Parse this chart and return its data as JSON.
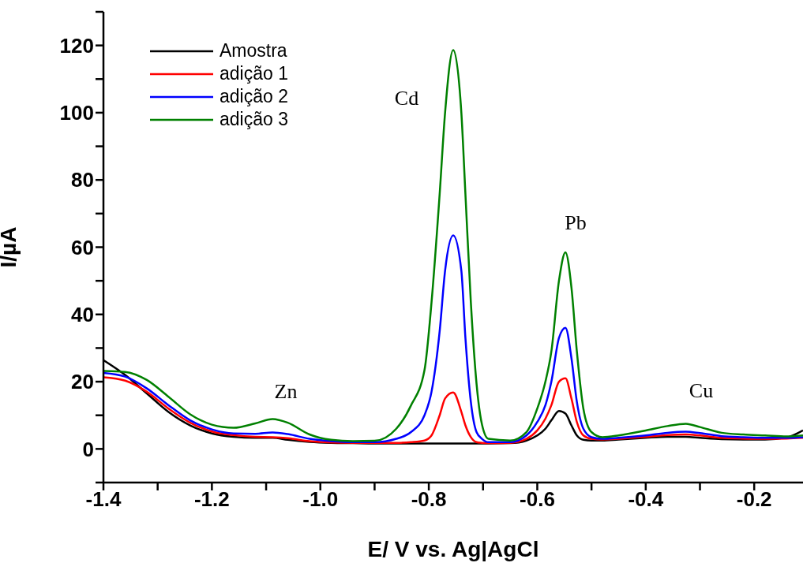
{
  "chart_data": {
    "type": "line",
    "xlabel": "E/ V vs. Ag|AgCl",
    "ylabel": "I/µA",
    "x": [
      -1.4,
      -1.36,
      -1.32,
      -1.28,
      -1.24,
      -1.2,
      -1.16,
      -1.12,
      -1.088,
      -1.06,
      -1.02,
      -0.98,
      -0.94,
      -0.9,
      -0.86,
      -0.833,
      -0.808,
      -0.795,
      -0.78,
      -0.77,
      -0.755,
      -0.74,
      -0.7325,
      -0.7225,
      -0.712,
      -0.702,
      -0.69,
      -0.65,
      -0.62,
      -0.6,
      -0.585,
      -0.574,
      -0.56,
      -0.548,
      -0.537,
      -0.527,
      -0.515,
      -0.5,
      -0.48,
      -0.45,
      -0.4,
      -0.36,
      -0.326,
      -0.3,
      -0.26,
      -0.22,
      -0.18,
      -0.14,
      -0.11
    ],
    "series": [
      {
        "name": "Amostra",
        "color": "#000000",
        "values": [
          26.4,
          22,
          16.5,
          11,
          7,
          4.6,
          3.6,
          3.3,
          3.3,
          2.7,
          2.1,
          1.8,
          1.7,
          1.6,
          1.6,
          1.6,
          1.6,
          1.6,
          1.6,
          1.6,
          1.6,
          1.6,
          1.6,
          1.6,
          1.6,
          1.6,
          1.6,
          1.7,
          2.5,
          4,
          6,
          8.5,
          11.3,
          10.5,
          7,
          4,
          2.7,
          2.5,
          2.5,
          2.8,
          3.3,
          3.6,
          3.6,
          3.3,
          2.9,
          2.8,
          2.8,
          3.4,
          5.5
        ]
      },
      {
        "name": "adição 1",
        "color": "#ff0000",
        "values": [
          21.3,
          20.3,
          17,
          12,
          7.8,
          5.2,
          4.1,
          3.6,
          3.5,
          3.2,
          2.3,
          1.9,
          1.8,
          1.8,
          1.8,
          2,
          2.5,
          4,
          10,
          15,
          16.8,
          11,
          7,
          3.5,
          2,
          1.8,
          1.7,
          1.8,
          3,
          5.5,
          9,
          13,
          20,
          21,
          15,
          8,
          4,
          3,
          2.8,
          3,
          3.6,
          4.1,
          4.3,
          4,
          3.3,
          3.1,
          3,
          3.1,
          3.3
        ]
      },
      {
        "name": "adição 2",
        "color": "#0000ff",
        "values": [
          22.6,
          21.5,
          18,
          13,
          8.5,
          5.8,
          4.6,
          4.5,
          4.9,
          4.4,
          3,
          2.3,
          2,
          2,
          3,
          5,
          10,
          17,
          35,
          53,
          63.5,
          53,
          33,
          14,
          5,
          3,
          2,
          2,
          4,
          8,
          13,
          20,
          33,
          36,
          27,
          14,
          6,
          3.5,
          3,
          3.3,
          4,
          4.8,
          5.1,
          4.7,
          3.8,
          3.5,
          3.3,
          3.3,
          3.5
        ]
      },
      {
        "name": "adição 3",
        "color": "#008000",
        "values": [
          23.2,
          22.9,
          20.5,
          15.5,
          10.3,
          7.2,
          6.3,
          7.6,
          8.9,
          7.8,
          4.3,
          2.7,
          2.3,
          2.4,
          6,
          12.9,
          23.4,
          43.6,
          75.8,
          100,
          118.6,
          100,
          75.8,
          43.6,
          19.4,
          7.3,
          3,
          2.5,
          5,
          12,
          20,
          29,
          50,
          58.5,
          48,
          29,
          12,
          5,
          3.5,
          4,
          5.5,
          6.8,
          7.5,
          6.5,
          4.8,
          4.3,
          4,
          3.7,
          4
        ]
      }
    ],
    "xlim": [
      -1.4,
      -0.11
    ],
    "xticks": [
      {
        "value": -1.4,
        "label": "-1.4"
      },
      {
        "value": -1.3,
        "label": null
      },
      {
        "value": -1.2,
        "label": "-1.2"
      },
      {
        "value": -1.1,
        "label": null
      },
      {
        "value": -1,
        "label": "-1.0"
      },
      {
        "value": -0.9,
        "label": null
      },
      {
        "value": -0.8,
        "label": "-0.8"
      },
      {
        "value": -0.7,
        "label": null
      },
      {
        "value": -0.6,
        "label": "-0.6"
      },
      {
        "value": -0.5,
        "label": null
      },
      {
        "value": -0.4,
        "label": "-0.4"
      },
      {
        "value": -0.3,
        "label": null
      },
      {
        "value": -0.2,
        "label": "-0.2"
      }
    ],
    "ylim": [
      -10,
      130
    ],
    "yticks": [
      {
        "value": -10,
        "label": null
      },
      0,
      {
        "value": 10,
        "label": null
      },
      20,
      {
        "value": 30,
        "label": null
      },
      40,
      {
        "value": 50,
        "label": null
      },
      60,
      {
        "value": 70,
        "label": null
      },
      80,
      {
        "value": 90,
        "label": null
      },
      100,
      {
        "value": 110,
        "label": null
      },
      120,
      {
        "value": 130,
        "label": null
      }
    ],
    "annotations": [
      "Zn",
      "Cd",
      "Pb",
      "Cu"
    ],
    "legend": "top left",
    "grid": false,
    "marker": "none",
    "line_style": "solid"
  }
}
